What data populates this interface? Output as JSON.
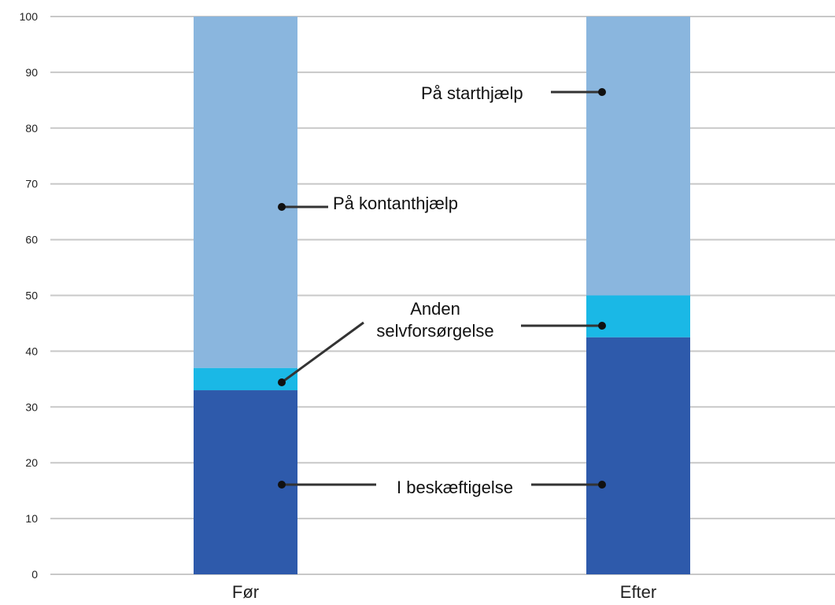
{
  "chart_data": {
    "type": "bar",
    "stacked": true,
    "categories": [
      "Før",
      "Efter"
    ],
    "series": [
      {
        "name": "I beskæftigelse",
        "values": [
          33,
          42.5
        ],
        "color": "#2e5aab"
      },
      {
        "name": "Anden selvforsørgelse",
        "values": [
          4,
          7.5
        ],
        "color": "#1ab8e6"
      },
      {
        "name": "På kontanthjælp",
        "values": [
          63,
          null
        ],
        "color": "#8ab6de"
      },
      {
        "name": "På starthjælp",
        "values": [
          null,
          50
        ],
        "color": "#8ab6de"
      }
    ],
    "annotations": [
      {
        "text_lines": [
          "I beskæftigelse"
        ],
        "series": 0,
        "categories": [
          0,
          1
        ]
      },
      {
        "text_lines": [
          "Anden",
          "selvforsørgelse"
        ],
        "series": 1,
        "categories": [
          0,
          1
        ]
      },
      {
        "text_lines": [
          "På kontanthjælp"
        ],
        "series": 2,
        "categories": [
          0
        ]
      },
      {
        "text_lines": [
          "På starthjælp"
        ],
        "series": 3,
        "categories": [
          1
        ]
      }
    ],
    "ylim": [
      0,
      100
    ],
    "yticks": [
      0,
      10,
      20,
      30,
      40,
      50,
      60,
      70,
      80,
      90,
      100
    ],
    "grid": true,
    "title": "",
    "xlabel": "",
    "ylabel": ""
  }
}
